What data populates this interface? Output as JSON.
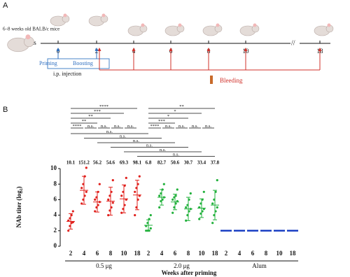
{
  "panel_a": {
    "letter": "A",
    "mice_label": "6–8 weeks old BALB/c mice",
    "axis_label": "Weeks",
    "timeline_labels": [
      "0",
      "2",
      "4",
      "6",
      "8",
      "10",
      "18"
    ],
    "priming": "Priming",
    "boosting": "Boosting",
    "injection": "i.p. injection",
    "bleeding": "Bleeding"
  },
  "chart_data": {
    "type": "scatter",
    "letter": "B",
    "y_label": "NAb titer (log₂)",
    "x_label": "Weeks after priming",
    "categories": [
      "2",
      "4",
      "6",
      "8",
      "10",
      "18",
      "2",
      "4",
      "6",
      "8",
      "10",
      "18",
      "2",
      "4",
      "6",
      "8",
      "10",
      "18"
    ],
    "ylim": [
      0,
      10
    ],
    "yticks": [
      0,
      2,
      4,
      6,
      8,
      10
    ],
    "series": [
      {
        "name": "0.5 μg",
        "color": "#e0201c",
        "points": [
          [
            2.0,
            2.6,
            3.0,
            3.1,
            3.3,
            3.6,
            4.0,
            4.5
          ],
          [
            5.5,
            6.0,
            6.5,
            7.0,
            7.5,
            8.0,
            9.0,
            10.1
          ],
          [
            4.5,
            5.0,
            5.3,
            5.7,
            6.0,
            6.3,
            7.0,
            8.0
          ],
          [
            4.0,
            4.6,
            5.0,
            5.6,
            6.0,
            6.5,
            7.0,
            8.5
          ],
          [
            4.3,
            4.8,
            5.3,
            6.0,
            6.5,
            7.0,
            7.8,
            8.8
          ],
          [
            4.0,
            5.0,
            6.0,
            6.5,
            7.0,
            7.5,
            8.0,
            9.0
          ]
        ],
        "mean": [
          3.2,
          7.2,
          5.7,
          5.8,
          6.1,
          6.6
        ],
        "sd": [
          1.0,
          1.8,
          1.3,
          1.8,
          1.8,
          1.9
        ],
        "titers": [
          10.1,
          151.2,
          56.2,
          54.6,
          69.3,
          98.1
        ]
      },
      {
        "name": "2.0 μg",
        "color": "#22b13c",
        "points": [
          [
            2.0,
            2.0,
            2.0,
            2.3,
            2.6,
            3.0,
            3.5,
            4.0
          ],
          [
            5.0,
            5.8,
            6.0,
            6.3,
            6.5,
            6.8,
            7.3,
            8.0
          ],
          [
            4.3,
            5.0,
            5.5,
            5.8,
            6.0,
            6.3,
            6.5,
            7.3
          ],
          [
            3.3,
            4.0,
            4.5,
            4.8,
            5.0,
            5.3,
            6.0,
            6.8
          ],
          [
            3.5,
            4.2,
            4.5,
            4.8,
            5.0,
            5.5,
            6.0,
            7.0
          ],
          [
            3.0,
            4.0,
            4.5,
            5.0,
            5.5,
            6.0,
            7.0,
            8.5
          ]
        ],
        "mean": [
          2.7,
          6.3,
          5.7,
          4.8,
          4.9,
          5.3
        ],
        "sd": [
          0.7,
          1.0,
          1.0,
          1.5,
          1.2,
          1.9
        ],
        "titers": [
          6.8,
          82.7,
          50.6,
          30.7,
          33.4,
          37.8
        ]
      },
      {
        "name": "Alum",
        "color": "#1a3fc4",
        "mean": [
          2,
          2,
          2,
          2,
          2,
          2
        ]
      }
    ],
    "comparisons": [
      "****",
      "***",
      "**",
      "**",
      "****",
      "n.s.",
      "n.s.",
      "n.s.",
      "n.s.",
      "**",
      "*",
      "*",
      "***",
      "****",
      "n.s.",
      "n.s.",
      "n.s.",
      "n.s.",
      "n.s.",
      "n.s.",
      "n.s.",
      "n.s.",
      "n.s.",
      "n.s."
    ]
  }
}
